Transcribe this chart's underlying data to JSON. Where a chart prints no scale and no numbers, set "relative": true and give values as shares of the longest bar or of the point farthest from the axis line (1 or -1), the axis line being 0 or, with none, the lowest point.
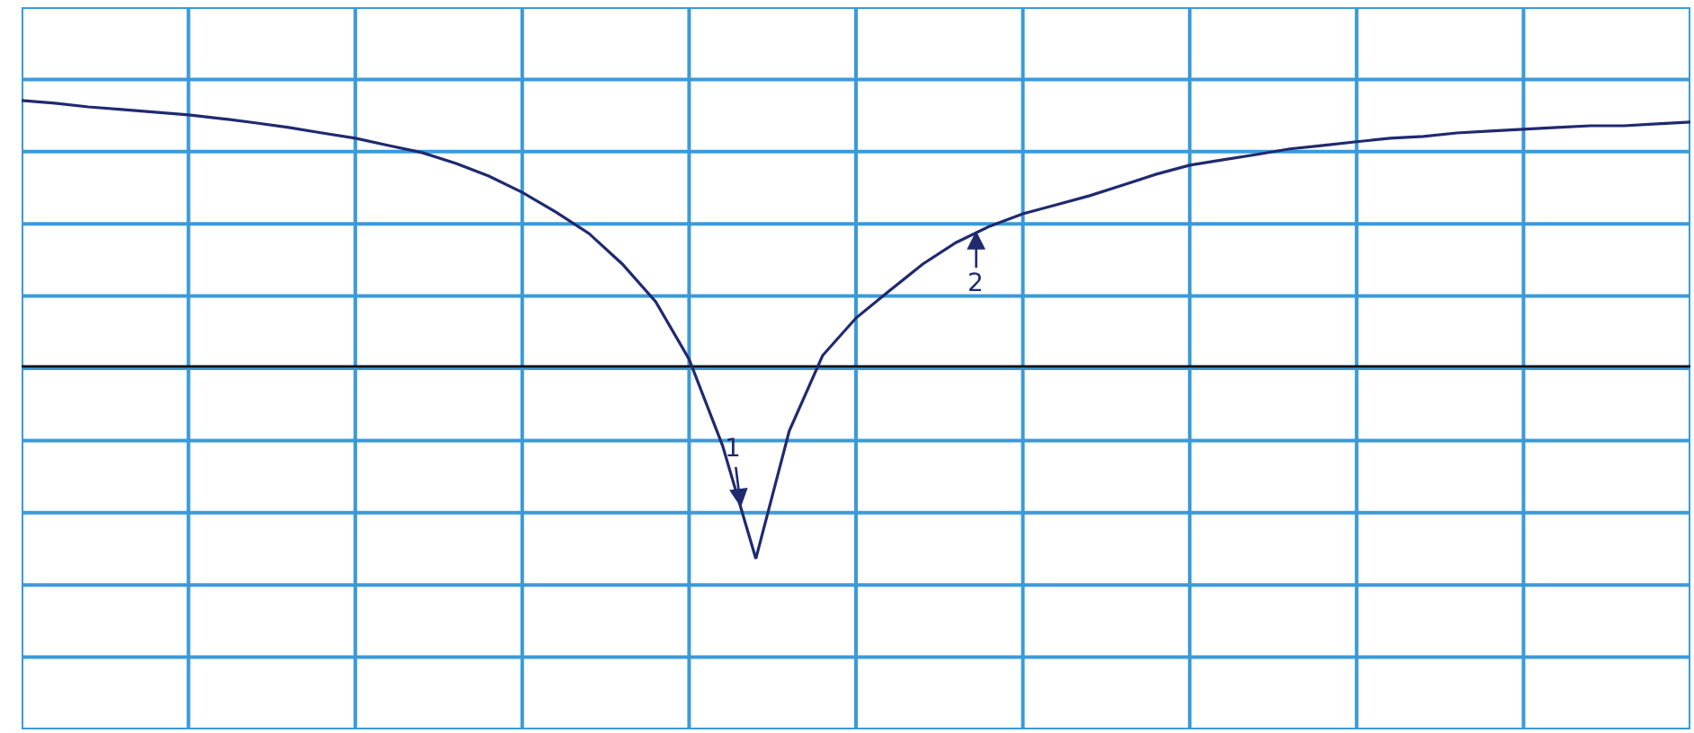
{
  "chart_data": {
    "type": "line",
    "relative": true,
    "grid": true,
    "marker": "none",
    "line_style": "solid",
    "categories": [
      null,
      null,
      null,
      null,
      null,
      null,
      null,
      null,
      null,
      null,
      null,
      null,
      null,
      null,
      null,
      null,
      null,
      null,
      null,
      null,
      null,
      null,
      null,
      null,
      null,
      null,
      null,
      null,
      null,
      null,
      null,
      null,
      null,
      null,
      null,
      null,
      null,
      null,
      null,
      null,
      null,
      null,
      null,
      null,
      null,
      null,
      null,
      null,
      null,
      null,
      null
    ],
    "series": [
      {
        "color": "#1f2a70",
        "values": [
          1.0,
          0.99,
          0.976,
          0.966,
          0.956,
          0.946,
          0.932,
          0.916,
          0.899,
          0.878,
          0.858,
          0.831,
          0.804,
          0.764,
          0.716,
          0.655,
          0.581,
          0.5,
          0.385,
          0.243,
          0.027,
          -0.297,
          -0.723,
          -0.243,
          0.041,
          0.182,
          0.284,
          0.385,
          0.466,
          0.527,
          0.574,
          0.608,
          0.642,
          0.682,
          0.723,
          0.757,
          0.777,
          0.797,
          0.818,
          0.831,
          0.845,
          0.858,
          0.865,
          0.878,
          0.885,
          0.892,
          0.899,
          0.905,
          0.905,
          0.912,
          0.919
        ]
      }
    ],
    "annotations": [
      "1",
      "2"
    ]
  }
}
